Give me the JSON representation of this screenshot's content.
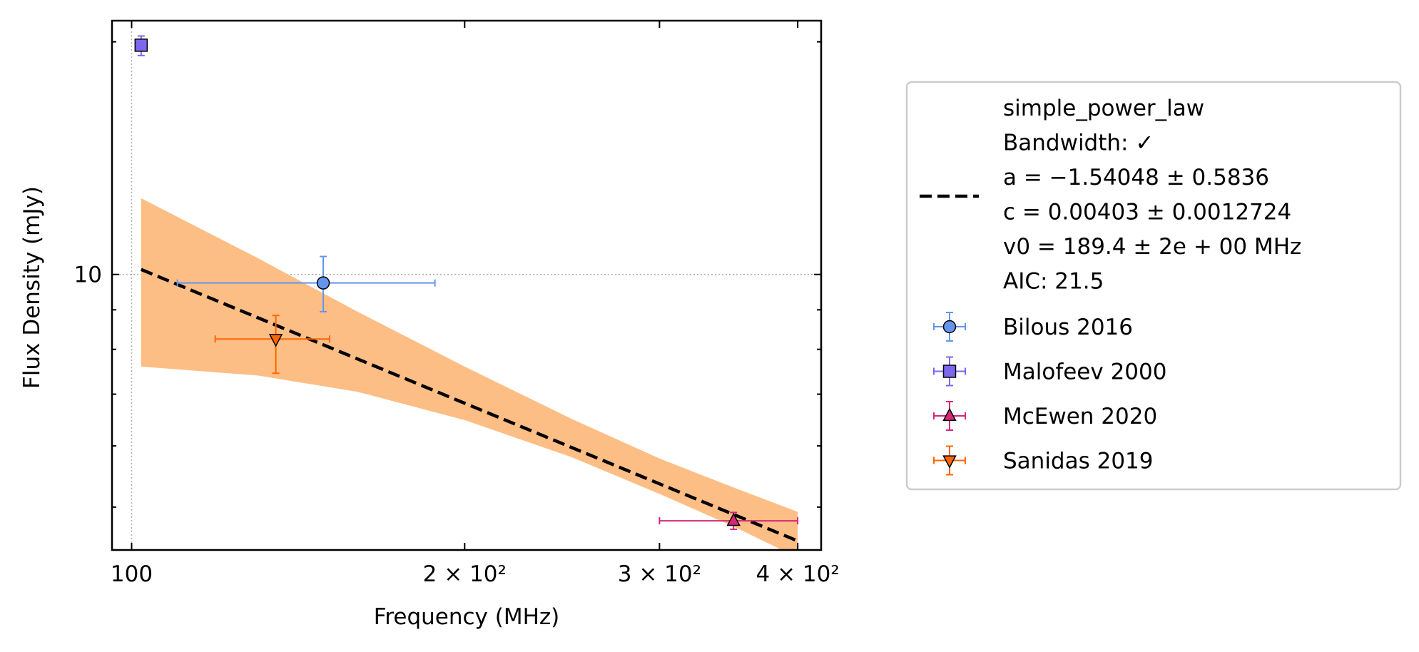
{
  "chart_data": {
    "type": "scatter",
    "xlabel": "Frequency (MHz)",
    "ylabel": "Flux Density (mJy)",
    "xscale": "log",
    "yscale": "log",
    "xlim": [
      96,
      420
    ],
    "ylim": [
      4.4,
      21.3
    ],
    "x_ticks": [
      {
        "value": 100,
        "label": "100"
      },
      {
        "value": 200,
        "label": "2 × 10²"
      },
      {
        "value": 300,
        "label": "3 × 10²"
      },
      {
        "value": 400,
        "label": "4 × 10²"
      }
    ],
    "y_ticks": [
      {
        "value": 10,
        "label": "10"
      }
    ],
    "grid": "dotted lines at x = 100 and y = 10",
    "legend_position": "outside right",
    "fit": {
      "model": "simple_power_law",
      "legend_lines": [
        "simple_power_law",
        "Bandwidth: ✓",
        "a = −1.54048 ± 0.5836",
        "c = 0.00403 ± 0.0012724",
        "v0 = 189.4 ± 2e + 00 MHz",
        "AIC: 21.5"
      ],
      "line_color": "#000000",
      "band_color": "#fdbe85",
      "curve": [
        {
          "x": 102,
          "y": 10.15
        },
        {
          "x": 400,
          "y": 4.52
        }
      ],
      "band_upper": [
        {
          "x": 102,
          "y": 12.55
        },
        {
          "x": 130,
          "y": 10.5
        },
        {
          "x": 160,
          "y": 8.95
        },
        {
          "x": 200,
          "y": 7.6
        },
        {
          "x": 250,
          "y": 6.5
        },
        {
          "x": 300,
          "y": 5.78
        },
        {
          "x": 350,
          "y": 5.3
        },
        {
          "x": 400,
          "y": 4.93
        }
      ],
      "band_lower": [
        {
          "x": 102,
          "y": 7.6
        },
        {
          "x": 130,
          "y": 7.4
        },
        {
          "x": 160,
          "y": 7.05
        },
        {
          "x": 200,
          "y": 6.48
        },
        {
          "x": 250,
          "y": 5.8
        },
        {
          "x": 300,
          "y": 5.2
        },
        {
          "x": 350,
          "y": 4.72
        },
        {
          "x": 400,
          "y": 4.3
        }
      ]
    },
    "series": [
      {
        "name": "Bilous 2016",
        "marker": "circle",
        "color": "#6495ed",
        "points": [
          {
            "x": 149,
            "x_lo": 110,
            "x_hi": 188,
            "y": 9.75,
            "y_lo": 8.95,
            "y_hi": 10.55
          }
        ]
      },
      {
        "name": "Malofeev 2000",
        "marker": "square",
        "color": "#7b68ee",
        "points": [
          {
            "x": 102,
            "x_lo": 102,
            "x_hi": 102,
            "y": 19.8,
            "y_lo": 19.2,
            "y_hi": 20.35
          }
        ]
      },
      {
        "name": "McEwen 2020",
        "marker": "triangle-up",
        "color": "#d6277a",
        "points": [
          {
            "x": 350,
            "x_lo": 300,
            "x_hi": 400,
            "y": 4.8,
            "y_lo": 4.68,
            "y_hi": 4.92
          }
        ]
      },
      {
        "name": "Sanidas 2019",
        "marker": "triangle-down",
        "color": "#ff6600",
        "points": [
          {
            "x": 135,
            "x_lo": 119,
            "x_hi": 151,
            "y": 8.25,
            "y_lo": 7.45,
            "y_hi": 8.85
          }
        ]
      }
    ]
  }
}
